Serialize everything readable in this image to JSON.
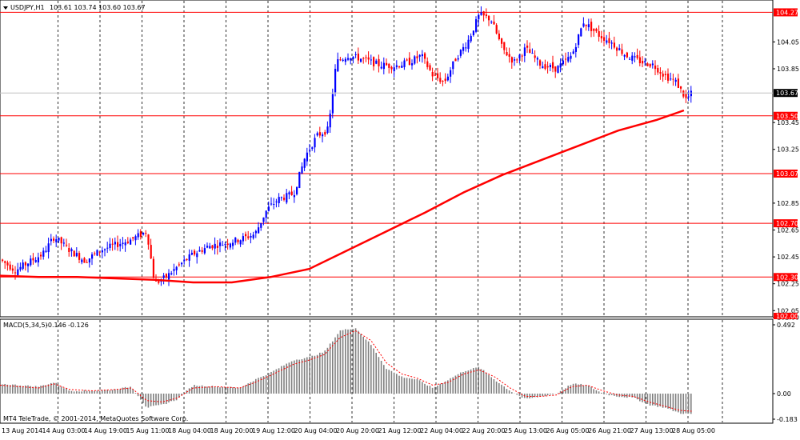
{
  "chart_data": [
    {
      "type": "candlestick",
      "title": "USDJPY,H1",
      "ohlc_header": "103.61 103.74 103.60 103.67",
      "symbol": "USDJPY",
      "timeframe": "H1",
      "y_ticks": [
        "104.27",
        "104.05",
        "103.85",
        "103.67",
        "103.50",
        "103.45",
        "103.25",
        "103.07",
        "102.85",
        "102.70",
        "102.65",
        "102.45",
        "102.30",
        "102.25",
        "102.05",
        "102.00"
      ],
      "y_range": [
        102.01,
        104.35
      ],
      "x_labels": [
        "13 Aug 2014",
        "14 Aug 03:00",
        "14 Aug 19:00",
        "15 Aug 11:00",
        "18 Aug 04:00",
        "18 Aug 20:00",
        "19 Aug 12:00",
        "20 Aug 04:00",
        "20 Aug 20:00",
        "21 Aug 12:00",
        "22 Aug 04:00",
        "22 Aug 20:00",
        "25 Aug 13:00",
        "26 Aug 05:00",
        "26 Aug 21:00",
        "27 Aug 13:00",
        "28 Aug 05:00"
      ],
      "horizontal_levels": [
        {
          "value": 104.27,
          "label": "104.27",
          "color": "#ff0000"
        },
        {
          "value": 103.5,
          "label": "103.50",
          "color": "#ff0000"
        },
        {
          "value": 103.07,
          "label": "103.07",
          "color": "#ff0000"
        },
        {
          "value": 102.7,
          "label": "102.70",
          "color": "#ff0000"
        },
        {
          "value": 102.3,
          "label": "102.30",
          "color": "#ff0000"
        }
      ],
      "bottom_level_label": "102.00",
      "current_price": {
        "value": 103.67,
        "label": "103.67"
      },
      "moving_average": {
        "color": "#ff0000",
        "points": [
          [
            0,
            102.31
          ],
          [
            0.05,
            102.3
          ],
          [
            0.1,
            102.3
          ],
          [
            0.15,
            102.29
          ],
          [
            0.2,
            102.28
          ],
          [
            0.25,
            102.26
          ],
          [
            0.3,
            102.26
          ],
          [
            0.35,
            102.3
          ],
          [
            0.4,
            102.36
          ],
          [
            0.45,
            102.5
          ],
          [
            0.5,
            102.64
          ],
          [
            0.55,
            102.78
          ],
          [
            0.6,
            102.93
          ],
          [
            0.65,
            103.06
          ],
          [
            0.7,
            103.17
          ],
          [
            0.75,
            103.28
          ],
          [
            0.8,
            103.39
          ],
          [
            0.85,
            103.47
          ],
          [
            0.885,
            103.54
          ]
        ]
      },
      "candle_path": [
        [
          0,
          102.43
        ],
        [
          0.02,
          102.35
        ],
        [
          0.04,
          102.42
        ],
        [
          0.055,
          102.47
        ],
        [
          0.07,
          102.6
        ],
        [
          0.09,
          102.5
        ],
        [
          0.11,
          102.42
        ],
        [
          0.13,
          102.5
        ],
        [
          0.15,
          102.54
        ],
        [
          0.17,
          102.58
        ],
        [
          0.19,
          102.64
        ],
        [
          0.2,
          102.25
        ],
        [
          0.215,
          102.3
        ],
        [
          0.23,
          102.38
        ],
        [
          0.25,
          102.47
        ],
        [
          0.27,
          102.53
        ],
        [
          0.29,
          102.55
        ],
        [
          0.31,
          102.58
        ],
        [
          0.33,
          102.62
        ],
        [
          0.345,
          102.8
        ],
        [
          0.36,
          102.88
        ],
        [
          0.38,
          102.92
        ],
        [
          0.395,
          103.2
        ],
        [
          0.41,
          103.35
        ],
        [
          0.425,
          103.4
        ],
        [
          0.435,
          103.9
        ],
        [
          0.45,
          103.95
        ],
        [
          0.47,
          103.92
        ],
        [
          0.49,
          103.88
        ],
        [
          0.51,
          103.87
        ],
        [
          0.53,
          103.9
        ],
        [
          0.545,
          103.95
        ],
        [
          0.56,
          103.8
        ],
        [
          0.575,
          103.75
        ],
        [
          0.59,
          103.93
        ],
        [
          0.605,
          104.05
        ],
        [
          0.62,
          104.25
        ],
        [
          0.635,
          104.22
        ],
        [
          0.65,
          104.0
        ],
        [
          0.665,
          103.9
        ],
        [
          0.68,
          104.0
        ],
        [
          0.7,
          103.88
        ],
        [
          0.72,
          103.85
        ],
        [
          0.74,
          103.95
        ],
        [
          0.755,
          104.2
        ],
        [
          0.775,
          104.1
        ],
        [
          0.79,
          104.05
        ],
        [
          0.81,
          103.95
        ],
        [
          0.83,
          103.9
        ],
        [
          0.845,
          103.88
        ],
        [
          0.86,
          103.8
        ],
        [
          0.875,
          103.75
        ],
        [
          0.888,
          103.62
        ],
        [
          0.895,
          103.67
        ]
      ],
      "macd": {
        "label": "MACD(5,34,5)",
        "value1": "-0.146",
        "value2": "-0.126",
        "y_ticks": [
          "0.492",
          "0.00",
          "-0.183"
        ],
        "y_range": [
          -0.183,
          0.492
        ],
        "hist_color": "#808080",
        "signal_color": "#ff0000",
        "hist_points": [
          [
            0,
            0.07
          ],
          [
            0.05,
            0.05
          ],
          [
            0.07,
            0.08
          ],
          [
            0.09,
            0.02
          ],
          [
            0.12,
            0.02
          ],
          [
            0.15,
            0.03
          ],
          [
            0.17,
            0.05
          ],
          [
            0.19,
            -0.1
          ],
          [
            0.21,
            -0.08
          ],
          [
            0.23,
            -0.04
          ],
          [
            0.25,
            0.06
          ],
          [
            0.28,
            0.05
          ],
          [
            0.31,
            0.04
          ],
          [
            0.33,
            0.1
          ],
          [
            0.35,
            0.15
          ],
          [
            0.38,
            0.24
          ],
          [
            0.4,
            0.26
          ],
          [
            0.42,
            0.3
          ],
          [
            0.44,
            0.45
          ],
          [
            0.46,
            0.47
          ],
          [
            0.48,
            0.35
          ],
          [
            0.5,
            0.18
          ],
          [
            0.52,
            0.12
          ],
          [
            0.54,
            0.1
          ],
          [
            0.56,
            0.04
          ],
          [
            0.58,
            0.1
          ],
          [
            0.6,
            0.16
          ],
          [
            0.62,
            0.19
          ],
          [
            0.64,
            0.1
          ],
          [
            0.66,
            0.02
          ],
          [
            0.68,
            -0.04
          ],
          [
            0.7,
            -0.02
          ],
          [
            0.72,
            0.0
          ],
          [
            0.74,
            0.07
          ],
          [
            0.76,
            0.06
          ],
          [
            0.78,
            0.0
          ],
          [
            0.8,
            -0.02
          ],
          [
            0.82,
            -0.03
          ],
          [
            0.84,
            -0.08
          ],
          [
            0.86,
            -0.1
          ],
          [
            0.88,
            -0.14
          ],
          [
            0.895,
            -0.146
          ]
        ],
        "signal_points": [
          [
            0,
            0.06
          ],
          [
            0.05,
            0.04
          ],
          [
            0.07,
            0.07
          ],
          [
            0.09,
            0.03
          ],
          [
            0.12,
            0.02
          ],
          [
            0.15,
            0.03
          ],
          [
            0.17,
            0.04
          ],
          [
            0.19,
            -0.05
          ],
          [
            0.21,
            -0.06
          ],
          [
            0.23,
            -0.03
          ],
          [
            0.25,
            0.04
          ],
          [
            0.28,
            0.05
          ],
          [
            0.31,
            0.04
          ],
          [
            0.33,
            0.08
          ],
          [
            0.35,
            0.13
          ],
          [
            0.38,
            0.21
          ],
          [
            0.4,
            0.24
          ],
          [
            0.42,
            0.28
          ],
          [
            0.44,
            0.4
          ],
          [
            0.46,
            0.45
          ],
          [
            0.48,
            0.38
          ],
          [
            0.5,
            0.22
          ],
          [
            0.52,
            0.14
          ],
          [
            0.54,
            0.11
          ],
          [
            0.56,
            0.06
          ],
          [
            0.58,
            0.08
          ],
          [
            0.6,
            0.14
          ],
          [
            0.62,
            0.17
          ],
          [
            0.64,
            0.12
          ],
          [
            0.66,
            0.04
          ],
          [
            0.68,
            -0.02
          ],
          [
            0.7,
            -0.02
          ],
          [
            0.72,
            -0.01
          ],
          [
            0.74,
            0.05
          ],
          [
            0.76,
            0.06
          ],
          [
            0.78,
            0.02
          ],
          [
            0.8,
            -0.01
          ],
          [
            0.82,
            -0.02
          ],
          [
            0.84,
            -0.06
          ],
          [
            0.86,
            -0.09
          ],
          [
            0.88,
            -0.12
          ],
          [
            0.895,
            -0.126
          ]
        ]
      }
    }
  ],
  "footer": {
    "copyright": "MT4 TeleTrade, © 2001-2014, MetaQuotes Software Corp."
  }
}
